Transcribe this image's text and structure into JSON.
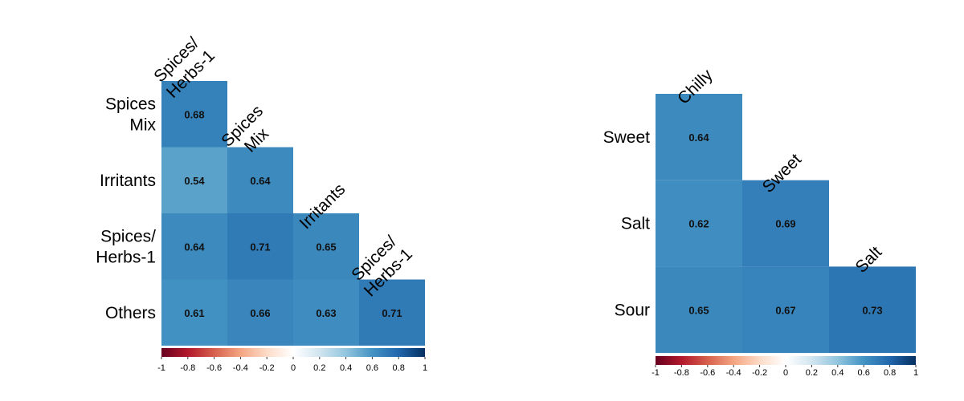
{
  "chart_data": [
    {
      "type": "heatmap",
      "rows": [
        [
          "Spices",
          "Mix"
        ],
        [
          "Irritants"
        ],
        [
          "Spices/",
          "Herbs-1"
        ],
        [
          "Others"
        ]
      ],
      "cols": [
        [
          "Spices/",
          "Herbs-1"
        ],
        [
          "Spices",
          "Mix"
        ],
        [
          "Irritants"
        ],
        [
          "Spices/",
          "Herbs-1"
        ]
      ],
      "values": [
        [
          0.68,
          null,
          null,
          null
        ],
        [
          0.54,
          0.64,
          null,
          null
        ],
        [
          0.64,
          0.71,
          0.65,
          null
        ],
        [
          0.61,
          0.66,
          0.63,
          0.71
        ]
      ],
      "colorbar": {
        "ticks": [
          "-1",
          "-0.8",
          "-0.6",
          "-0.4",
          "-0.2",
          "0",
          "0.2",
          "0.4",
          "0.6",
          "0.8",
          "1"
        ],
        "range": [
          -1,
          1
        ]
      }
    },
    {
      "type": "heatmap",
      "rows": [
        [
          "Sweet"
        ],
        [
          "Salt"
        ],
        [
          "Sour"
        ]
      ],
      "cols": [
        [
          "Chilly"
        ],
        [
          "Sweet"
        ],
        [
          "Salt"
        ]
      ],
      "values": [
        [
          0.64,
          null,
          null
        ],
        [
          0.62,
          0.69,
          null
        ],
        [
          0.65,
          0.67,
          0.73
        ]
      ],
      "colorbar": {
        "ticks": [
          "-1",
          "-0.8",
          "-0.6",
          "-0.4",
          "-0.2",
          "0",
          "0.2",
          "0.4",
          "0.6",
          "0.8",
          "1"
        ],
        "range": [
          -1,
          1
        ]
      }
    }
  ]
}
